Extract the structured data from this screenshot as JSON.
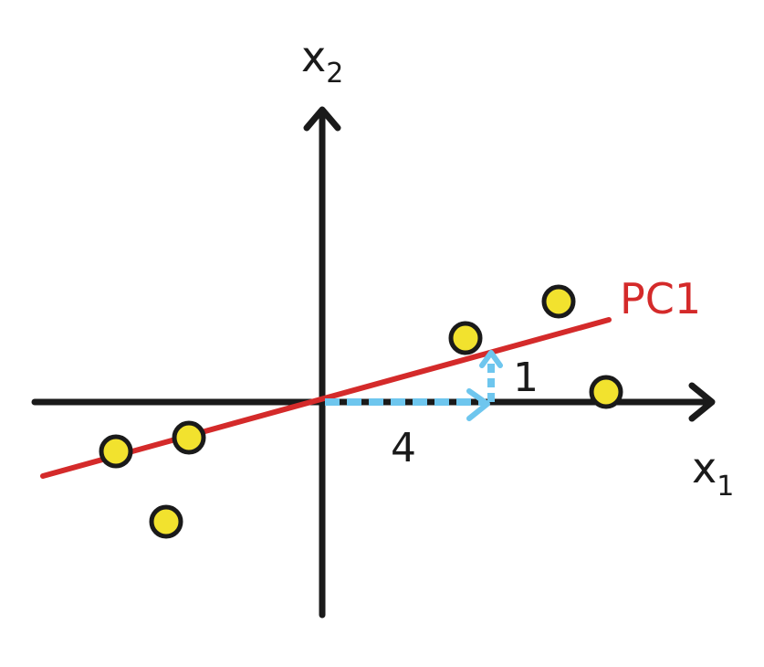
{
  "axes": {
    "x_label": "x",
    "x_subscript": "1",
    "y_label": "x",
    "y_subscript": "2"
  },
  "pc_line": {
    "label": "PC1"
  },
  "vector_components": {
    "horizontal": "4",
    "vertical": "1"
  },
  "colors": {
    "axis": "#1a1a1a",
    "pc_line": "#d42a2a",
    "point_fill": "#f2e22e",
    "point_stroke": "#1a1a1a",
    "vector": "#6ec6ee"
  }
}
